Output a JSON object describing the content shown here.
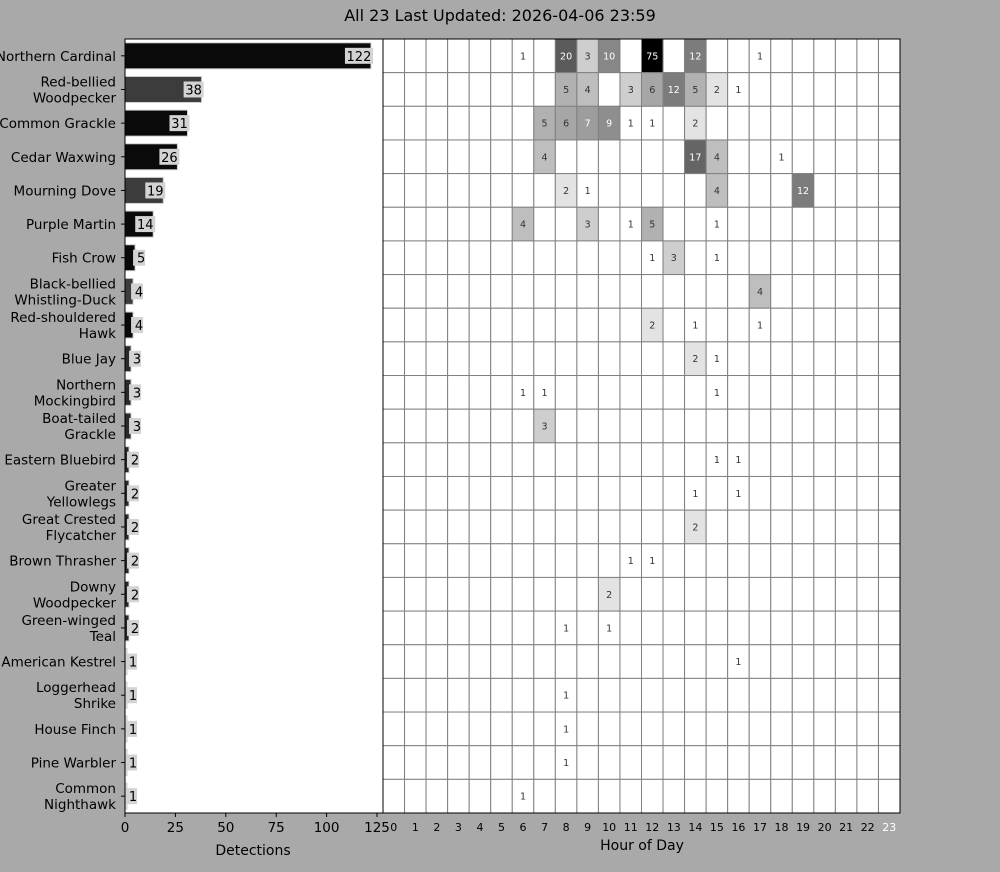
{
  "title": "All 23 Last Updated: 2026-04-06 23:59",
  "chart_data": [
    {
      "type": "bar",
      "orientation": "horizontal",
      "categories": [
        "Northern Cardinal",
        "Red-bellied Woodpecker",
        "Common Grackle",
        "Cedar Waxwing",
        "Mourning Dove",
        "Purple Martin",
        "Fish Crow",
        "Black-bellied Whistling-Duck",
        "Red-shouldered Hawk",
        "Blue Jay",
        "Northern Mockingbird",
        "Boat-tailed Grackle",
        "Eastern Bluebird",
        "Greater Yellowlegs",
        "Great Crested Flycatcher",
        "Brown Thrasher",
        "Downy Woodpecker",
        "Green-winged Teal",
        "American Kestrel",
        "Loggerhead Shrike",
        "House Finch",
        "Pine Warbler",
        "Common Nighthawk"
      ],
      "category_lines": [
        [
          "Northern Cardinal"
        ],
        [
          "Red-bellied",
          "Woodpecker"
        ],
        [
          "Common Grackle"
        ],
        [
          "Cedar Waxwing"
        ],
        [
          "Mourning Dove"
        ],
        [
          "Purple Martin"
        ],
        [
          "Fish Crow"
        ],
        [
          "Black-bellied",
          "Whistling-Duck"
        ],
        [
          "Red-shouldered",
          "Hawk"
        ],
        [
          "Blue Jay"
        ],
        [
          "Northern",
          "Mockingbird"
        ],
        [
          "Boat-tailed",
          "Grackle"
        ],
        [
          "Eastern Bluebird"
        ],
        [
          "Greater",
          "Yellowlegs"
        ],
        [
          "Great Crested",
          "Flycatcher"
        ],
        [
          "Brown Thrasher"
        ],
        [
          "Downy",
          "Woodpecker"
        ],
        [
          "Green-winged",
          "Teal"
        ],
        [
          "American Kestrel"
        ],
        [
          "Loggerhead",
          "Shrike"
        ],
        [
          "House Finch"
        ],
        [
          "Pine Warbler"
        ],
        [
          "Common",
          "Nighthawk"
        ]
      ],
      "values": [
        122,
        38,
        31,
        26,
        19,
        14,
        5,
        4,
        4,
        3,
        3,
        3,
        2,
        2,
        2,
        2,
        2,
        2,
        1,
        1,
        1,
        1,
        1
      ],
      "xlabel": "Detections",
      "xlim": [
        0,
        125
      ],
      "xticks": [
        0,
        25,
        50,
        75,
        100,
        125
      ]
    },
    {
      "type": "heatmap",
      "xlabel": "Hour of Day",
      "x": [
        0,
        1,
        2,
        3,
        4,
        5,
        6,
        7,
        8,
        9,
        10,
        11,
        12,
        13,
        14,
        15,
        16,
        17,
        18,
        19,
        20,
        21,
        22,
        23
      ],
      "highlight_hour": 23,
      "rows": [
        {
          "6": 1,
          "8": 20,
          "9": 3,
          "10": 10,
          "12": 75,
          "14": 12,
          "17": 1
        },
        {
          "8": 5,
          "9": 4,
          "11": 3,
          "12": 6,
          "13": 12,
          "14": 5,
          "15": 2,
          "16": 1
        },
        {
          "7": 5,
          "8": 6,
          "9": 7,
          "10": 9,
          "11": 1,
          "12": 1,
          "14": 2
        },
        {
          "7": 4,
          "14": 17,
          "15": 4,
          "18": 1
        },
        {
          "8": 2,
          "9": 1,
          "15": 4,
          "19": 12
        },
        {
          "6": 4,
          "9": 3,
          "11": 1,
          "12": 5,
          "15": 1
        },
        {
          "12": 1,
          "13": 3,
          "15": 1
        },
        {
          "17": 4
        },
        {
          "12": 2,
          "14": 1,
          "17": 1
        },
        {
          "14": 2,
          "15": 1
        },
        {
          "6": 1,
          "7": 1,
          "15": 1
        },
        {
          "7": 3
        },
        {
          "15": 1,
          "16": 1
        },
        {
          "14": 1,
          "16": 1
        },
        {
          "14": 2
        },
        {
          "11": 1,
          "12": 1
        },
        {
          "10": 2
        },
        {
          "8": 1,
          "10": 1
        },
        {
          "16": 1
        },
        {
          "8": 1
        },
        {
          "8": 1
        },
        {
          "8": 1
        },
        {
          "6": 1
        }
      ],
      "colormap": "grayscale, white=low, black=high"
    }
  ],
  "colors": {
    "background": "#a9a9a9",
    "label_box": "#d3d3d3",
    "grid": "#808080"
  }
}
